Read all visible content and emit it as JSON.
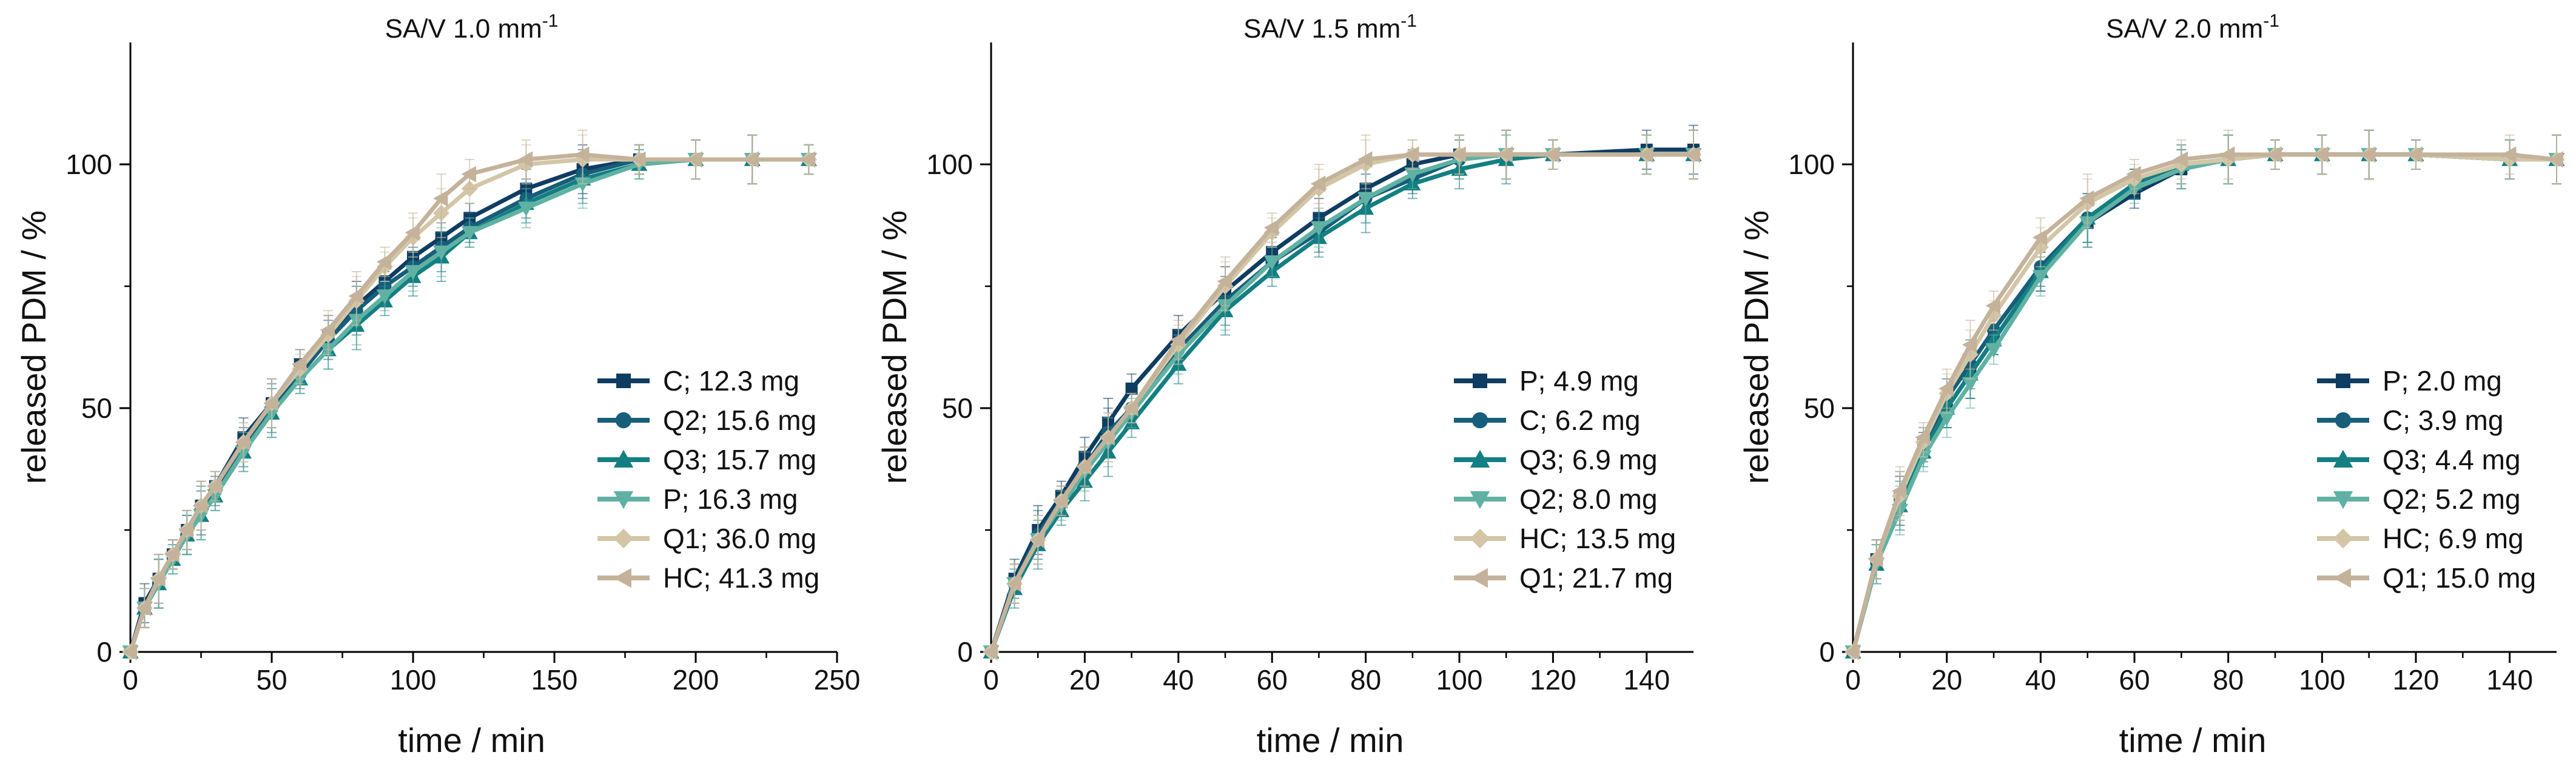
{
  "series_colors": [
    "#0f3d62",
    "#175e7a",
    "#137f82",
    "#5fb2a3",
    "#d3c6a6",
    "#c4b29a"
  ],
  "chart_data": [
    {
      "type": "line",
      "title": "SA/V 1.0 mm",
      "title_sup": "-1",
      "xlabel": "time / min",
      "ylabel": "released PDM / %",
      "xlim": [
        0,
        250
      ],
      "ylim": [
        0,
        125
      ],
      "xticks": [
        0,
        50,
        100,
        150,
        200,
        250
      ],
      "yticks": [
        0,
        50,
        100
      ],
      "legend_position": "bottom-right",
      "series": [
        {
          "name": "C; 12.3 mg",
          "marker": "square",
          "x": [
            0,
            5,
            10,
            15,
            20,
            25,
            30,
            40,
            50,
            60,
            70,
            80,
            90,
            100,
            110,
            120,
            140,
            160,
            180,
            200,
            220,
            240
          ],
          "y": [
            0,
            10,
            15,
            20,
            25,
            30,
            34,
            44,
            51,
            59,
            65,
            71,
            76,
            81,
            85,
            89,
            95,
            99,
            101,
            101,
            101,
            101
          ]
        },
        {
          "name": "Q2; 15.6 mg",
          "marker": "circle",
          "x": [
            0,
            5,
            10,
            15,
            20,
            25,
            30,
            40,
            50,
            60,
            70,
            80,
            90,
            100,
            110,
            120,
            140,
            160,
            180,
            200,
            220,
            240
          ],
          "y": [
            0,
            9,
            14,
            20,
            24,
            29,
            33,
            42,
            50,
            57,
            64,
            70,
            75,
            79,
            83,
            87,
            93,
            98,
            101,
            101,
            101,
            101
          ]
        },
        {
          "name": "Q3; 15.7 mg",
          "marker": "triangle-up",
          "x": [
            0,
            5,
            10,
            15,
            20,
            25,
            30,
            40,
            50,
            60,
            70,
            80,
            90,
            100,
            110,
            120,
            140,
            160,
            180,
            200,
            220,
            240
          ],
          "y": [
            0,
            9,
            14,
            19,
            24,
            28,
            32,
            41,
            49,
            56,
            62,
            67,
            72,
            77,
            81,
            86,
            92,
            97,
            100,
            101,
            101,
            101
          ]
        },
        {
          "name": "P; 16.3 mg",
          "marker": "triangle-down",
          "x": [
            0,
            5,
            10,
            15,
            20,
            25,
            30,
            40,
            50,
            60,
            70,
            80,
            90,
            100,
            110,
            120,
            140,
            160,
            180,
            200,
            220,
            240
          ],
          "y": [
            0,
            9,
            14,
            19,
            24,
            28,
            32,
            41,
            49,
            56,
            62,
            68,
            73,
            78,
            82,
            86,
            91,
            96,
            100,
            101,
            101,
            101
          ]
        },
        {
          "name": "Q1; 36.0 mg",
          "marker": "diamond",
          "x": [
            0,
            5,
            10,
            15,
            20,
            25,
            30,
            40,
            50,
            60,
            70,
            80,
            90,
            100,
            110,
            120,
            140,
            160,
            180,
            200,
            220,
            240
          ],
          "y": [
            0,
            9,
            15,
            20,
            25,
            30,
            34,
            43,
            51,
            58,
            65,
            72,
            79,
            85,
            90,
            95,
            100,
            101,
            101,
            101,
            101,
            101
          ]
        },
        {
          "name": "HC; 41.3 mg",
          "marker": "triangle-left",
          "x": [
            0,
            5,
            10,
            15,
            20,
            25,
            30,
            40,
            50,
            60,
            70,
            80,
            90,
            100,
            110,
            120,
            140,
            160,
            180,
            200,
            220,
            240
          ],
          "y": [
            0,
            9,
            15,
            20,
            25,
            30,
            34,
            43,
            51,
            59,
            66,
            73,
            80,
            86,
            93,
            98,
            101,
            102,
            101,
            101,
            101,
            101
          ]
        }
      ]
    },
    {
      "type": "line",
      "title": "SA/V 1.5 mm",
      "title_sup": "-1",
      "xlabel": "time / min",
      "ylabel": "released PDM / %",
      "xlim": [
        0,
        150
      ],
      "ylim": [
        0,
        125
      ],
      "xticks": [
        0,
        20,
        40,
        60,
        80,
        100,
        120,
        140
      ],
      "yticks": [
        0,
        50,
        100
      ],
      "legend_position": "bottom-right",
      "series": [
        {
          "name": "P; 4.9 mg",
          "marker": "square",
          "x": [
            0,
            5,
            10,
            15,
            20,
            25,
            30,
            40,
            50,
            60,
            70,
            80,
            90,
            100,
            110,
            120,
            140,
            150
          ],
          "y": [
            0,
            15,
            25,
            32,
            40,
            47,
            54,
            65,
            74,
            82,
            89,
            95,
            100,
            102,
            102,
            102,
            103,
            103
          ]
        },
        {
          "name": "C; 6.2 mg",
          "marker": "circle",
          "x": [
            0,
            5,
            10,
            15,
            20,
            25,
            30,
            40,
            50,
            60,
            70,
            80,
            90,
            100,
            110,
            120,
            140,
            150
          ],
          "y": [
            0,
            14,
            24,
            31,
            38,
            45,
            50,
            62,
            72,
            80,
            86,
            93,
            97,
            101,
            102,
            102,
            102,
            102
          ]
        },
        {
          "name": "Q3; 6.9 mg",
          "marker": "triangle-up",
          "x": [
            0,
            5,
            10,
            15,
            20,
            25,
            30,
            40,
            50,
            60,
            70,
            80,
            90,
            100,
            110,
            120,
            140,
            150
          ],
          "y": [
            0,
            13,
            22,
            29,
            35,
            41,
            47,
            59,
            70,
            78,
            85,
            91,
            96,
            99,
            101,
            102,
            102,
            102
          ]
        },
        {
          "name": "Q2; 8.0 mg",
          "marker": "triangle-down",
          "x": [
            0,
            5,
            10,
            15,
            20,
            25,
            30,
            40,
            50,
            60,
            70,
            80,
            90,
            100,
            110,
            120,
            140,
            150
          ],
          "y": [
            0,
            14,
            23,
            30,
            37,
            43,
            49,
            61,
            71,
            80,
            87,
            93,
            98,
            101,
            102,
            102,
            102,
            102
          ]
        },
        {
          "name": "HC; 13.5 mg",
          "marker": "diamond",
          "x": [
            0,
            5,
            10,
            15,
            20,
            25,
            30,
            40,
            50,
            60,
            70,
            80,
            90,
            100,
            110,
            120,
            140,
            150
          ],
          "y": [
            0,
            14,
            23,
            31,
            38,
            44,
            50,
            63,
            75,
            86,
            95,
            100,
            102,
            102,
            102,
            102,
            102,
            102
          ]
        },
        {
          "name": "Q1; 21.7 mg",
          "marker": "triangle-left",
          "x": [
            0,
            5,
            10,
            15,
            20,
            25,
            30,
            40,
            50,
            60,
            70,
            80,
            90,
            100,
            110,
            120,
            140,
            150
          ],
          "y": [
            0,
            14,
            23,
            31,
            38,
            44,
            50,
            64,
            76,
            87,
            96,
            101,
            102,
            102,
            102,
            102,
            102,
            102
          ]
        }
      ]
    },
    {
      "type": "line",
      "title": "SA/V 2.0 mm",
      "title_sup": "-1",
      "xlabel": "time / min",
      "ylabel": "released PDM / %",
      "xlim": [
        0,
        150
      ],
      "ylim": [
        0,
        125
      ],
      "xticks": [
        0,
        20,
        40,
        60,
        80,
        100,
        120,
        140
      ],
      "yticks": [
        0,
        50,
        100
      ],
      "legend_position": "bottom-right",
      "series": [
        {
          "name": "P; 2.0 mg",
          "marker": "square",
          "x": [
            0,
            5,
            10,
            15,
            20,
            25,
            30,
            40,
            50,
            60,
            70,
            80,
            90,
            100,
            110,
            120,
            140,
            150
          ],
          "y": [
            0,
            19,
            31,
            42,
            50,
            57,
            64,
            78,
            88,
            94,
            99,
            101,
            102,
            102,
            102,
            102,
            101,
            101
          ]
        },
        {
          "name": "C; 3.9 mg",
          "marker": "circle",
          "x": [
            0,
            5,
            10,
            15,
            20,
            25,
            30,
            40,
            50,
            60,
            70,
            80,
            90,
            100,
            110,
            120,
            140,
            150
          ],
          "y": [
            0,
            19,
            32,
            43,
            52,
            59,
            66,
            79,
            89,
            96,
            100,
            101,
            102,
            102,
            102,
            102,
            101,
            101
          ]
        },
        {
          "name": "Q3; 4.4 mg",
          "marker": "triangle-up",
          "x": [
            0,
            5,
            10,
            15,
            20,
            25,
            30,
            40,
            50,
            60,
            70,
            80,
            90,
            100,
            110,
            120,
            140,
            150
          ],
          "y": [
            0,
            18,
            30,
            41,
            50,
            57,
            64,
            78,
            89,
            96,
            100,
            101,
            102,
            102,
            102,
            102,
            101,
            101
          ]
        },
        {
          "name": "Q2; 5.2 mg",
          "marker": "triangle-down",
          "x": [
            0,
            5,
            10,
            15,
            20,
            25,
            30,
            40,
            50,
            60,
            70,
            80,
            90,
            100,
            110,
            120,
            140,
            150
          ],
          "y": [
            0,
            18,
            29,
            40,
            48,
            55,
            62,
            77,
            88,
            95,
            99,
            101,
            102,
            102,
            102,
            102,
            101,
            101
          ]
        },
        {
          "name": "HC; 6.9 mg",
          "marker": "diamond",
          "x": [
            0,
            5,
            10,
            15,
            20,
            25,
            30,
            40,
            50,
            60,
            70,
            80,
            90,
            100,
            110,
            120,
            140,
            150
          ],
          "y": [
            0,
            19,
            32,
            43,
            53,
            61,
            69,
            83,
            92,
            97,
            100,
            101,
            102,
            102,
            102,
            102,
            101,
            101
          ]
        },
        {
          "name": "Q1; 15.0 mg",
          "marker": "triangle-left",
          "x": [
            0,
            5,
            10,
            15,
            20,
            25,
            30,
            40,
            50,
            60,
            70,
            80,
            90,
            100,
            110,
            120,
            140,
            150
          ],
          "y": [
            0,
            19,
            33,
            44,
            54,
            63,
            71,
            85,
            93,
            98,
            101,
            102,
            102,
            102,
            102,
            102,
            102,
            101
          ]
        }
      ]
    }
  ]
}
